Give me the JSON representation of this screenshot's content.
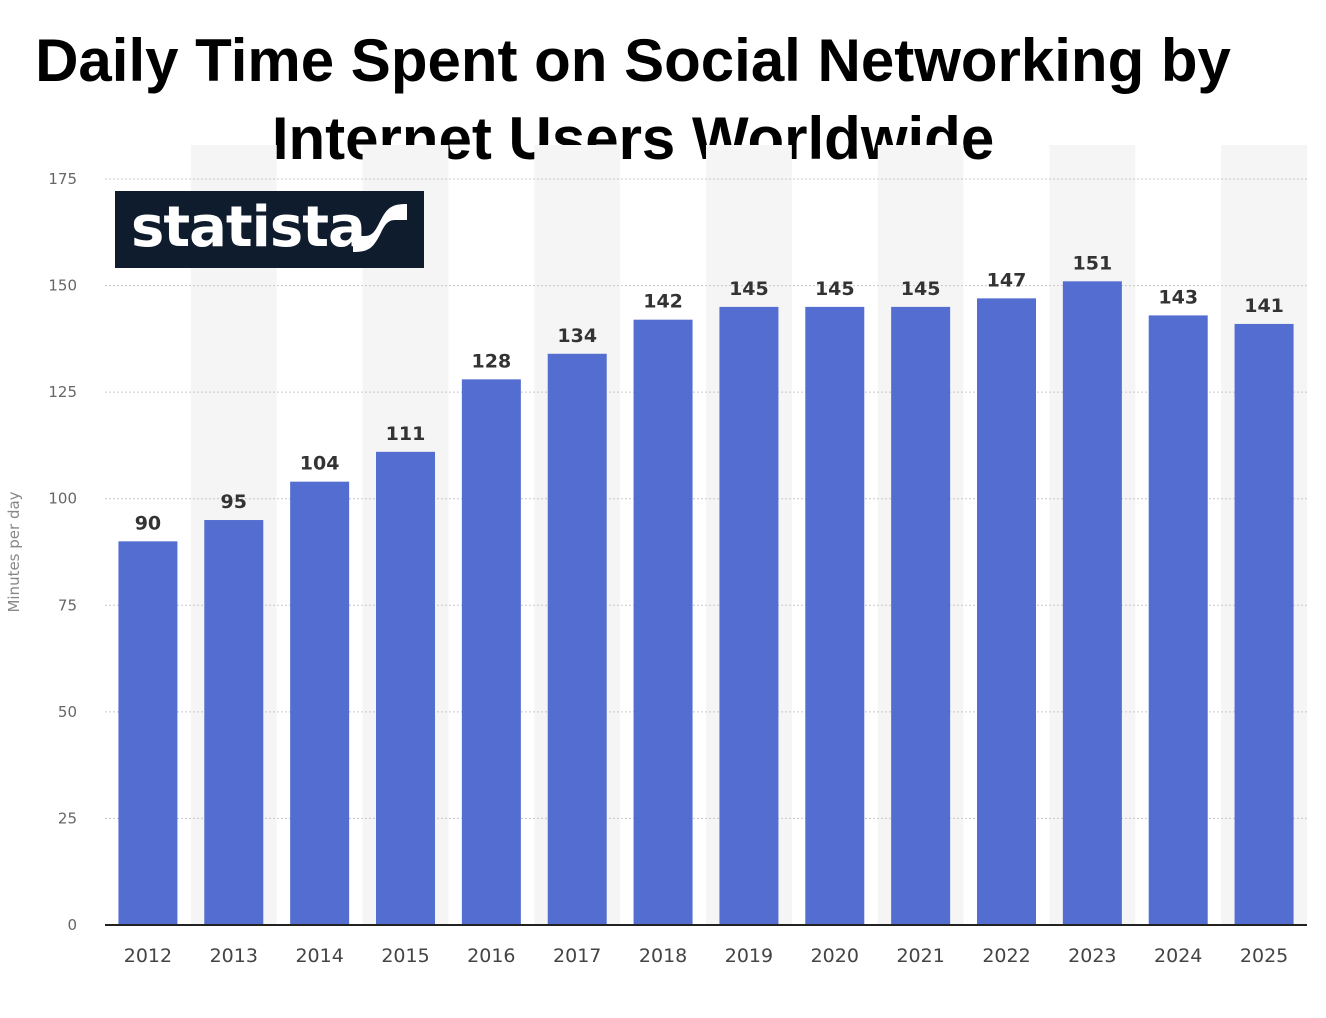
{
  "chart_data": {
    "type": "bar",
    "title_lines": [
      "Daily Time Spent on Social Networking by",
      "Internet Users Worldwide"
    ],
    "categories": [
      "2012",
      "2013",
      "2014",
      "2015",
      "2016",
      "2017",
      "2018",
      "2019",
      "2020",
      "2021",
      "2022",
      "2023",
      "2024",
      "2025"
    ],
    "values": [
      90,
      95,
      104,
      111,
      128,
      134,
      142,
      145,
      145,
      145,
      147,
      151,
      143,
      141
    ],
    "ylabel": "Minutes per day",
    "xlabel": "",
    "ylim": [
      0,
      175
    ],
    "yticks": [
      0,
      25,
      50,
      75,
      100,
      125,
      150,
      175
    ],
    "grid": true,
    "bar_color": "#546dd0"
  },
  "logo": {
    "text": "statista"
  }
}
